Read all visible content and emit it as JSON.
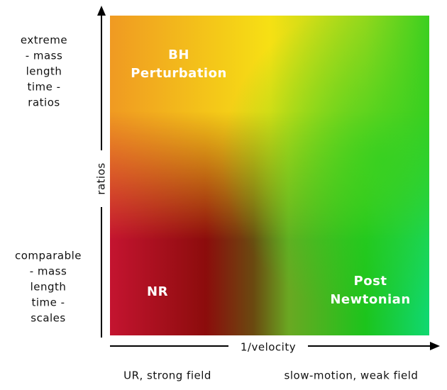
{
  "y_axis": {
    "label": "ratios",
    "top": [
      "extreme",
      "- mass",
      "length",
      "time -",
      "ratios"
    ],
    "bottom": [
      "comparable",
      "- mass",
      "length",
      "time -",
      "scales"
    ]
  },
  "x_axis": {
    "label": "1/velocity",
    "left": "UR, strong field",
    "right": "slow-motion, weak field"
  },
  "regions": [
    {
      "lines": [
        "BH",
        "Perturbation"
      ]
    },
    {
      "lines": [
        "NR"
      ]
    },
    {
      "lines": [
        "Post",
        "Newtonian"
      ]
    }
  ]
}
